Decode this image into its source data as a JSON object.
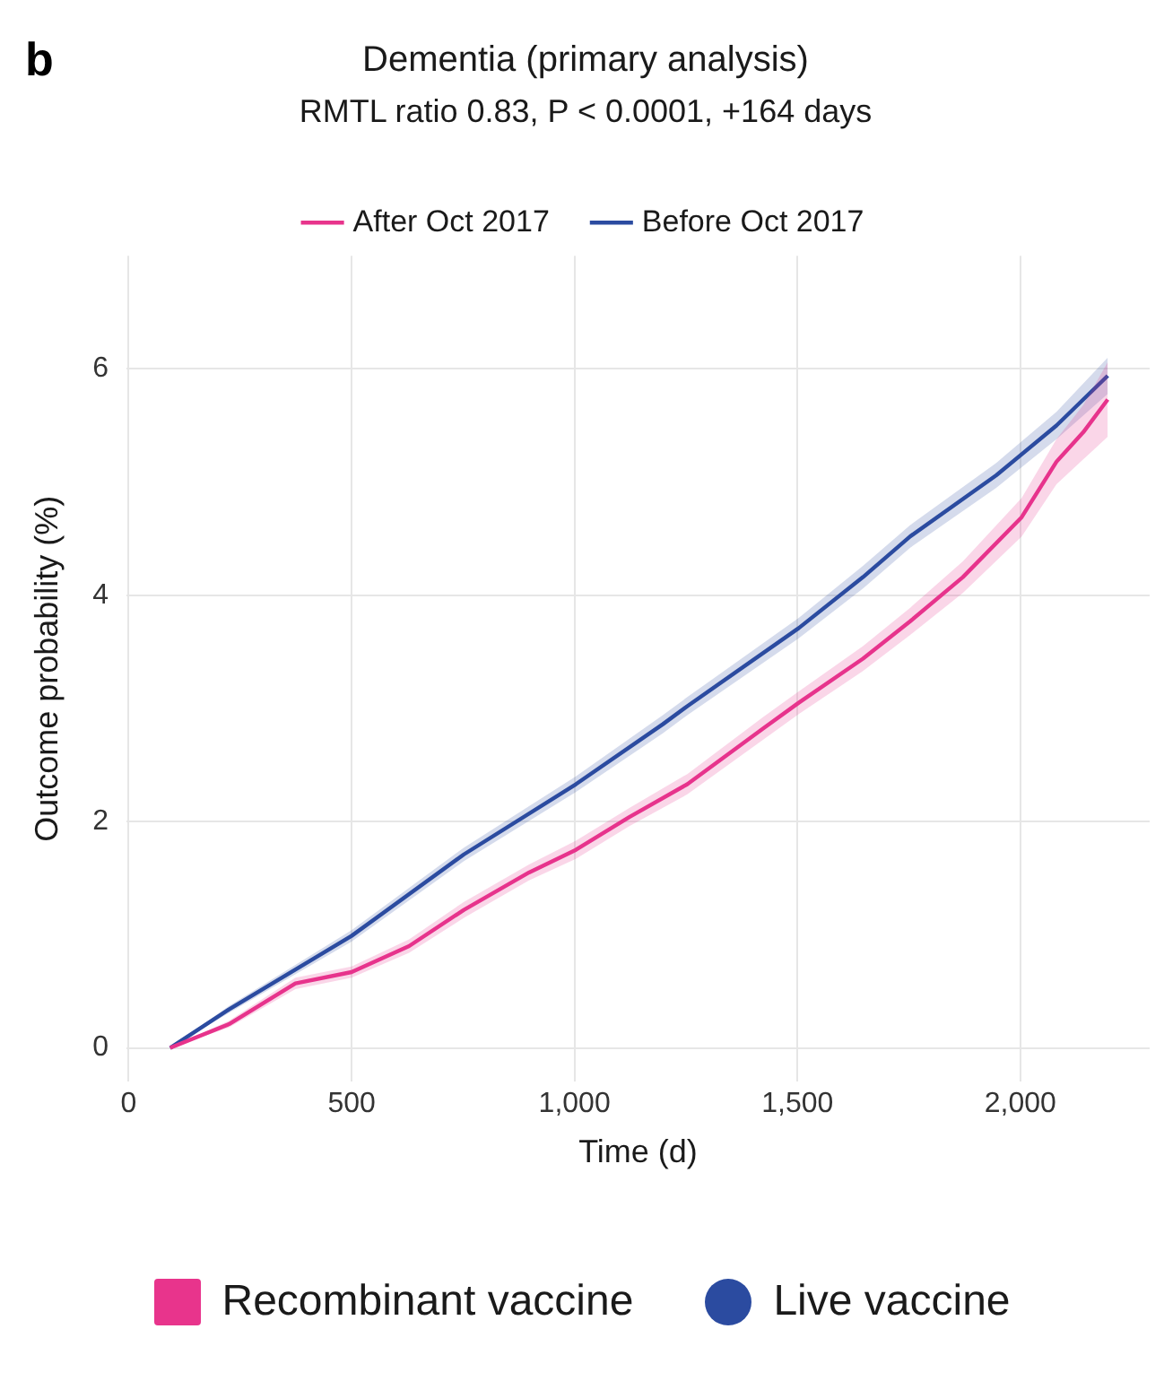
{
  "chart_data": {
    "type": "line",
    "title": "Dementia (primary analysis)",
    "subtitle": "RMTL ratio 0.83, P < 0.0001, +164 days",
    "xlabel": "Time (d)",
    "ylabel": "Outcome probability (%)",
    "xlim": [
      -5,
      2290
    ],
    "ylim": [
      -0.3,
      7.0
    ],
    "xticks": [
      {
        "value": 0,
        "label": "0"
      },
      {
        "value": 500,
        "label": "500"
      },
      {
        "value": 1000,
        "label": "1,000"
      },
      {
        "value": 1500,
        "label": "1,500"
      },
      {
        "value": 2000,
        "label": "2,000"
      }
    ],
    "yticks": [
      0,
      2,
      4,
      6
    ],
    "grid": true,
    "legend": "top",
    "line_style": "solid",
    "marker": "none",
    "annotations": [
      "b",
      "Recombinant vaccine",
      "Live vaccine"
    ],
    "series": [
      {
        "name": "After Oct 2017",
        "color": "#e8348c",
        "x": [
          93,
          225,
          374,
          500,
          629,
          752,
          898,
          1003,
          1123,
          1253,
          1422,
          1503,
          1647,
          1753,
          1871,
          2003,
          2081,
          2141,
          2196
        ],
        "values": [
          0,
          0.21,
          0.57,
          0.67,
          0.9,
          1.22,
          1.55,
          1.75,
          2.04,
          2.33,
          2.82,
          3.05,
          3.44,
          3.77,
          4.16,
          4.69,
          5.18,
          5.44,
          5.73
        ],
        "lower": [
          0,
          0.18,
          0.52,
          0.62,
          0.84,
          1.15,
          1.48,
          1.67,
          1.96,
          2.24,
          2.72,
          2.95,
          3.33,
          3.65,
          4.02,
          4.52,
          4.98,
          5.2,
          5.4
        ],
        "upper": [
          0,
          0.24,
          0.62,
          0.72,
          0.96,
          1.29,
          1.62,
          1.83,
          2.12,
          2.42,
          2.92,
          3.15,
          3.55,
          3.89,
          4.3,
          4.86,
          5.38,
          5.68,
          6.06
        ]
      },
      {
        "name": "Before Oct 2017",
        "color": "#2b4ba0",
        "x": [
          93,
          225,
          500,
          752,
          1003,
          1198,
          1253,
          1503,
          1647,
          1753,
          1946,
          2081,
          2196
        ],
        "values": [
          0,
          0.34,
          0.99,
          1.71,
          2.33,
          2.86,
          3.02,
          3.71,
          4.16,
          4.52,
          5.06,
          5.5,
          5.94
        ],
        "lower": [
          0,
          0.31,
          0.94,
          1.65,
          2.26,
          2.78,
          2.94,
          3.62,
          4.06,
          4.42,
          4.95,
          5.38,
          5.78
        ],
        "upper": [
          0,
          0.37,
          1.04,
          1.77,
          2.4,
          2.94,
          3.1,
          3.8,
          4.26,
          4.62,
          5.17,
          5.62,
          6.1
        ]
      }
    ]
  }
}
